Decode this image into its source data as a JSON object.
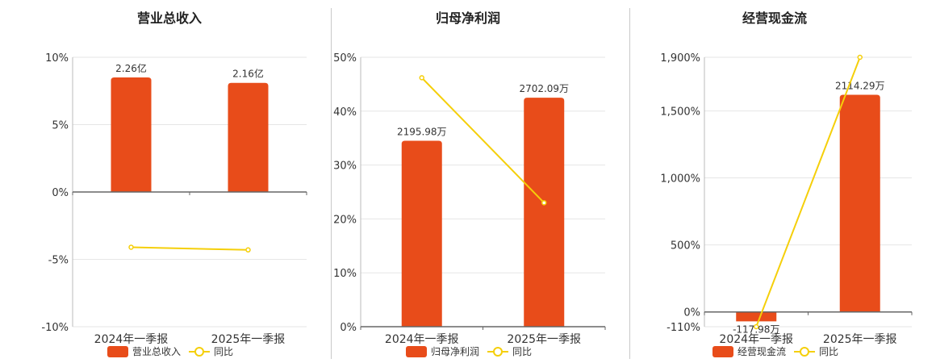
{
  "colors": {
    "bar": "#e84c1a",
    "line": "#f5cf0a",
    "grid": "#e6e6e6",
    "axis": "#666666"
  },
  "chart_data": [
    {
      "type": "bar",
      "title": "营业总收入",
      "categories": [
        "2024年一季报",
        "2025年一季报"
      ],
      "ylim": [
        -10,
        10
      ],
      "yticks": [
        10,
        5,
        0,
        -5,
        -10
      ],
      "ytick_labels": [
        "10%",
        "5%",
        "0%",
        "-5%",
        "-10%"
      ],
      "series": [
        {
          "name": "营业总收入",
          "kind": "bar",
          "values": [
            8.5,
            8.1
          ],
          "labels": [
            "2.26亿",
            "2.16亿"
          ]
        },
        {
          "name": "同比",
          "kind": "line",
          "values": [
            -4.1,
            -4.3
          ]
        }
      ],
      "legend": "bottom",
      "grid": true
    },
    {
      "type": "bar",
      "title": "归母净利润",
      "categories": [
        "2024年一季报",
        "2025年一季报"
      ],
      "ylim": [
        0,
        50
      ],
      "yticks": [
        50,
        40,
        30,
        20,
        10,
        0
      ],
      "ytick_labels": [
        "50%",
        "40%",
        "30%",
        "20%",
        "10%",
        "0%"
      ],
      "series": [
        {
          "name": "归母净利润",
          "kind": "bar",
          "values": [
            34.5,
            42.5
          ],
          "labels": [
            "2195.98万",
            "2702.09万"
          ]
        },
        {
          "name": "同比",
          "kind": "line",
          "values": [
            46.2,
            23.0
          ]
        }
      ],
      "legend": "bottom",
      "grid": true
    },
    {
      "type": "bar",
      "title": "经营现金流",
      "categories": [
        "2024年一季报",
        "2025年一季报"
      ],
      "ylim": [
        -110,
        1900
      ],
      "yticks": [
        1900,
        1500,
        1000,
        500,
        0,
        -110
      ],
      "ytick_labels": [
        "1,900%",
        "1,500%",
        "1,000%",
        "500%",
        "0%",
        "-110%"
      ],
      "series": [
        {
          "name": "经营现金流",
          "kind": "bar",
          "values": [
            -70,
            1620
          ],
          "labels": [
            "-117.98万",
            "2114.29万"
          ]
        },
        {
          "name": "同比",
          "kind": "line",
          "values": [
            -110,
            1900
          ]
        }
      ],
      "legend": "bottom",
      "grid": true
    }
  ]
}
